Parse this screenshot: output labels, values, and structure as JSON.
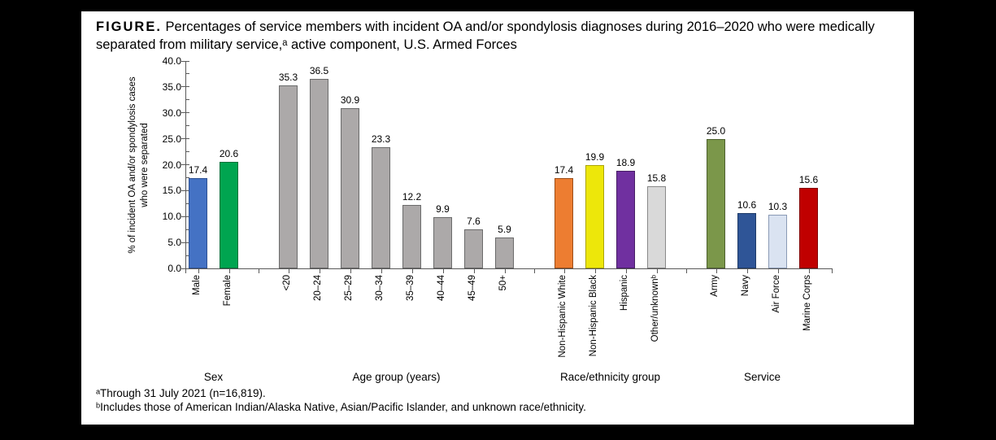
{
  "figure": {
    "label": "FIGURE.",
    "title": "Percentages of service members with incident OA and/or spondylosis diagnoses during 2016–2020 who were medically separated from military service,ᵃ active component, U.S. Armed Forces",
    "footnotes": [
      "ᵃThrough 31 July 2021 (n=16,819).",
      "ᵇIncludes those of American Indian/Alaska Native, Asian/Pacific Islander, and unknown race/ethnicity."
    ]
  },
  "chart_data": {
    "type": "bar",
    "title": "Percentages of service members with incident OA and/or spondylosis diagnoses during 2016–2020 who were medically separated from military service, active component, U.S. Armed Forces",
    "ylabel_line1": "% of incident OA and/or spondylosis cases",
    "ylabel_line2": "who were separated",
    "ylim": [
      0,
      40
    ],
    "ytick_step": 5,
    "ytick_labels": [
      "0.0",
      "5.0",
      "10.0",
      "15.0",
      "20.0",
      "25.0",
      "30.0",
      "35.0",
      "40.0"
    ],
    "grid": false,
    "legend": "none",
    "value_labels": true,
    "groups": [
      {
        "name": "Sex",
        "bars": [
          {
            "label": "Male",
            "value": 17.4,
            "fill": "#4472C4",
            "border": "#2E5294"
          },
          {
            "label": "Female",
            "value": 20.6,
            "fill": "#00A550",
            "border": "#03713A"
          }
        ]
      },
      {
        "name": "Age group (years)",
        "bars": [
          {
            "label": "<20",
            "value": 35.3,
            "fill": "#ACA9A9",
            "border": "#6B6B6B"
          },
          {
            "label": "20–24",
            "value": 36.5,
            "fill": "#ACA9A9",
            "border": "#6B6B6B"
          },
          {
            "label": "25–29",
            "value": 30.9,
            "fill": "#ACA9A9",
            "border": "#6B6B6B"
          },
          {
            "label": "30–34",
            "value": 23.3,
            "fill": "#ACA9A9",
            "border": "#6B6B6B"
          },
          {
            "label": "35–39",
            "value": 12.2,
            "fill": "#ACA9A9",
            "border": "#6B6B6B"
          },
          {
            "label": "40–44",
            "value": 9.9,
            "fill": "#ACA9A9",
            "border": "#6B6B6B"
          },
          {
            "label": "45–49",
            "value": 7.6,
            "fill": "#ACA9A9",
            "border": "#6B6B6B"
          },
          {
            "label": "50+",
            "value": 5.9,
            "fill": "#ACA9A9",
            "border": "#6B6B6B"
          }
        ]
      },
      {
        "name": "Race/ethnicity group",
        "bars": [
          {
            "label": "Non-Hispanic White",
            "value": 17.4,
            "fill": "#ED7D31",
            "border": "#9C4E19"
          },
          {
            "label": "Non-Hispanic Black",
            "value": 19.9,
            "fill": "#EDE70A",
            "border": "#ABA408"
          },
          {
            "label": "Hispanic",
            "value": 18.9,
            "fill": "#7030A0",
            "border": "#471E66"
          },
          {
            "label": "Other/unknownᵇ",
            "value": 15.8,
            "fill": "#D9D9D9",
            "border": "#898989"
          }
        ]
      },
      {
        "name": "Service",
        "bars": [
          {
            "label": "Army",
            "value": 25.0,
            "fill": "#7B974A",
            "border": "#4E6130"
          },
          {
            "label": "Navy",
            "value": 10.6,
            "fill": "#2F5597",
            "border": "#1E3A68"
          },
          {
            "label": "Air Force",
            "value": 10.3,
            "fill": "#DAE3F1",
            "border": "#8A9AB5"
          },
          {
            "label": "Marine Corps",
            "value": 15.6,
            "fill": "#C00000",
            "border": "#800000"
          }
        ]
      }
    ]
  },
  "colors": {
    "background": "#000000",
    "panel": "#FFFFFF",
    "axis": "#595959",
    "text": "#000000"
  }
}
